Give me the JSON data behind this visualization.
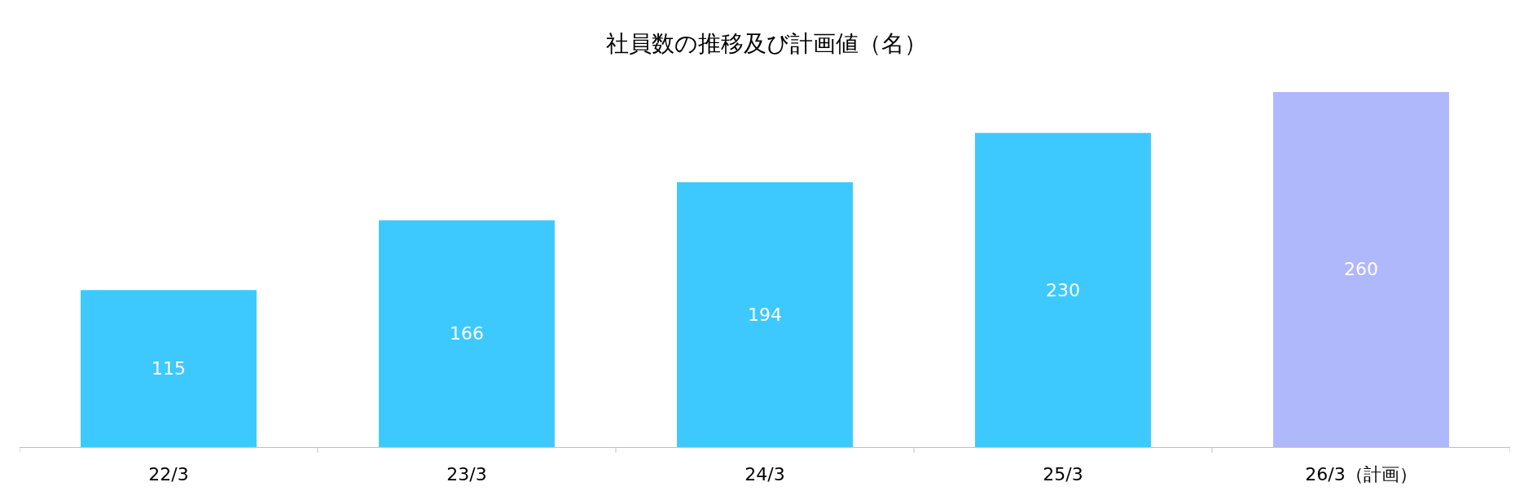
{
  "chart_data": {
    "type": "bar",
    "title": "社員数の推移及び計画値（名）",
    "categories": [
      "22/3",
      "23/3",
      "24/3",
      "25/3",
      "26/3（計画）"
    ],
    "values": [
      115,
      166,
      194,
      230,
      260
    ],
    "colors": [
      "#3ec9fe",
      "#3ec9fe",
      "#3ec9fe",
      "#3ec9fe",
      "#b0b8fc"
    ],
    "data_labels": true,
    "legend": false,
    "tick_labels": "x"
  }
}
